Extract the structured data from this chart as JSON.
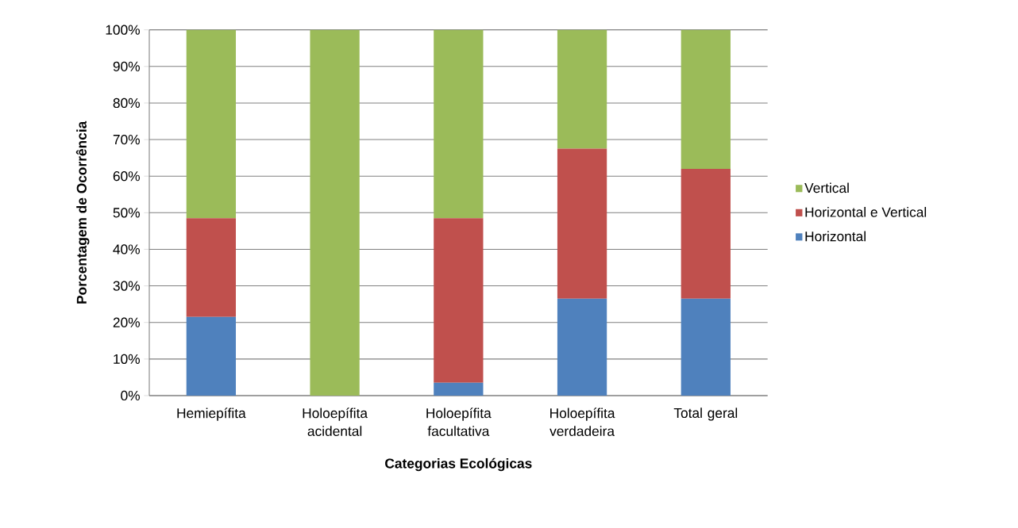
{
  "chart_data": {
    "type": "bar",
    "stacked": true,
    "xlabel": "Categorias Ecológicas",
    "ylabel": "Porcentagem de Ocorrência",
    "categories": [
      "Hemiepífita",
      "Holoepífita acidental",
      "Holoepífita facultativa",
      "Holoepífita verdadeira",
      "Total geral"
    ],
    "series": [
      {
        "name": "Horizontal",
        "color": "#4f81bd",
        "values": [
          21.5,
          0,
          3.5,
          26.5,
          26.5
        ]
      },
      {
        "name": "Horizontal e Vertical",
        "color": "#c0504d",
        "values": [
          27,
          0,
          45,
          41,
          35.5
        ]
      },
      {
        "name": "Vertical",
        "color": "#9bbb59",
        "values": [
          51.5,
          100,
          51.5,
          32.5,
          38
        ]
      }
    ],
    "ylim": [
      0,
      100
    ],
    "yticks": [
      {
        "value": 0,
        "label": "0%"
      },
      {
        "value": 10,
        "label": "10%"
      },
      {
        "value": 20,
        "label": "20%"
      },
      {
        "value": 30,
        "label": "30%"
      },
      {
        "value": 40,
        "label": "40%"
      },
      {
        "value": 50,
        "label": "50%"
      },
      {
        "value": 60,
        "label": "60%"
      },
      {
        "value": 70,
        "label": "70%"
      },
      {
        "value": 80,
        "label": "80%"
      },
      {
        "value": 90,
        "label": "90%"
      },
      {
        "value": 100,
        "label": "100%"
      }
    ],
    "grid": "y",
    "legend": "right"
  }
}
